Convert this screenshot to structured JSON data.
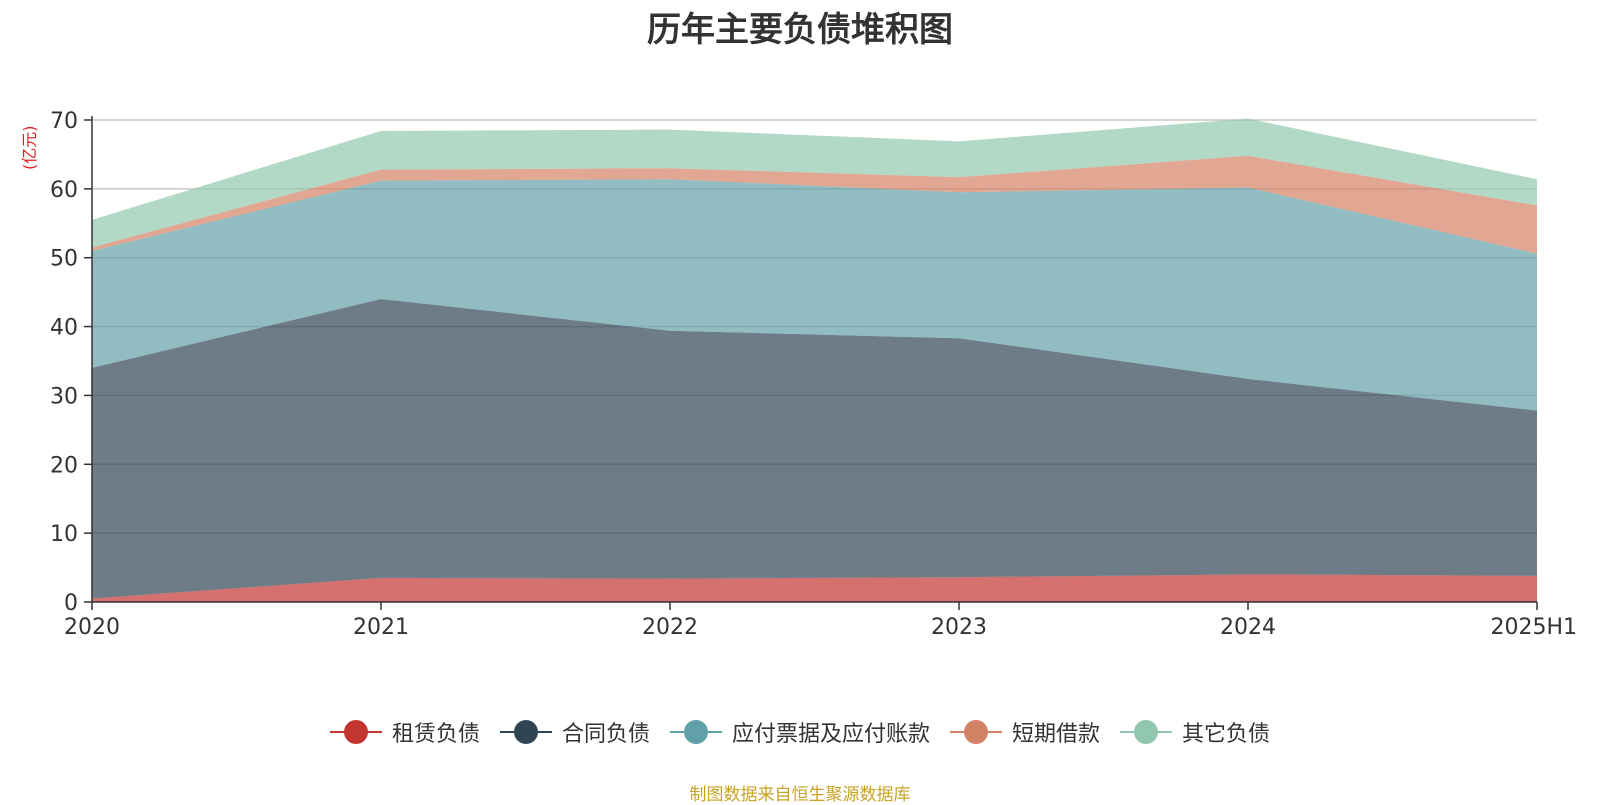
{
  "chart_data": {
    "type": "area",
    "title": "历年主要负债堆积图",
    "ylabel": "(亿元)",
    "xlabel": "",
    "categories": [
      "2020",
      "2021",
      "2022",
      "2023",
      "2024",
      "2025H1"
    ],
    "ylim": [
      0,
      70
    ],
    "yticks": [
      0,
      10,
      20,
      30,
      40,
      50,
      60,
      70
    ],
    "stacked": true,
    "grid": true,
    "legend_position": "bottom",
    "series": [
      {
        "name": "租赁负债",
        "color": "#c23531",
        "values": [
          0.5,
          3.5,
          3.4,
          3.6,
          4.0,
          3.8
        ]
      },
      {
        "name": "合同负债",
        "color": "#2f4554",
        "values": [
          33.5,
          40.5,
          36.0,
          34.7,
          28.4,
          24.0
        ]
      },
      {
        "name": "应付票据及应付账款",
        "color": "#61a0a8",
        "values": [
          17.0,
          17.2,
          22.0,
          21.2,
          27.8,
          22.8
        ]
      },
      {
        "name": "短期借款",
        "color": "#d48265",
        "values": [
          0.5,
          1.6,
          1.6,
          2.2,
          4.6,
          7.0
        ]
      },
      {
        "name": "其它负债",
        "color": "#91c7ae",
        "values": [
          4.0,
          5.6,
          5.6,
          5.2,
          5.4,
          3.8
        ]
      }
    ]
  },
  "source_text": "制图数据来自恒生聚源数据库"
}
